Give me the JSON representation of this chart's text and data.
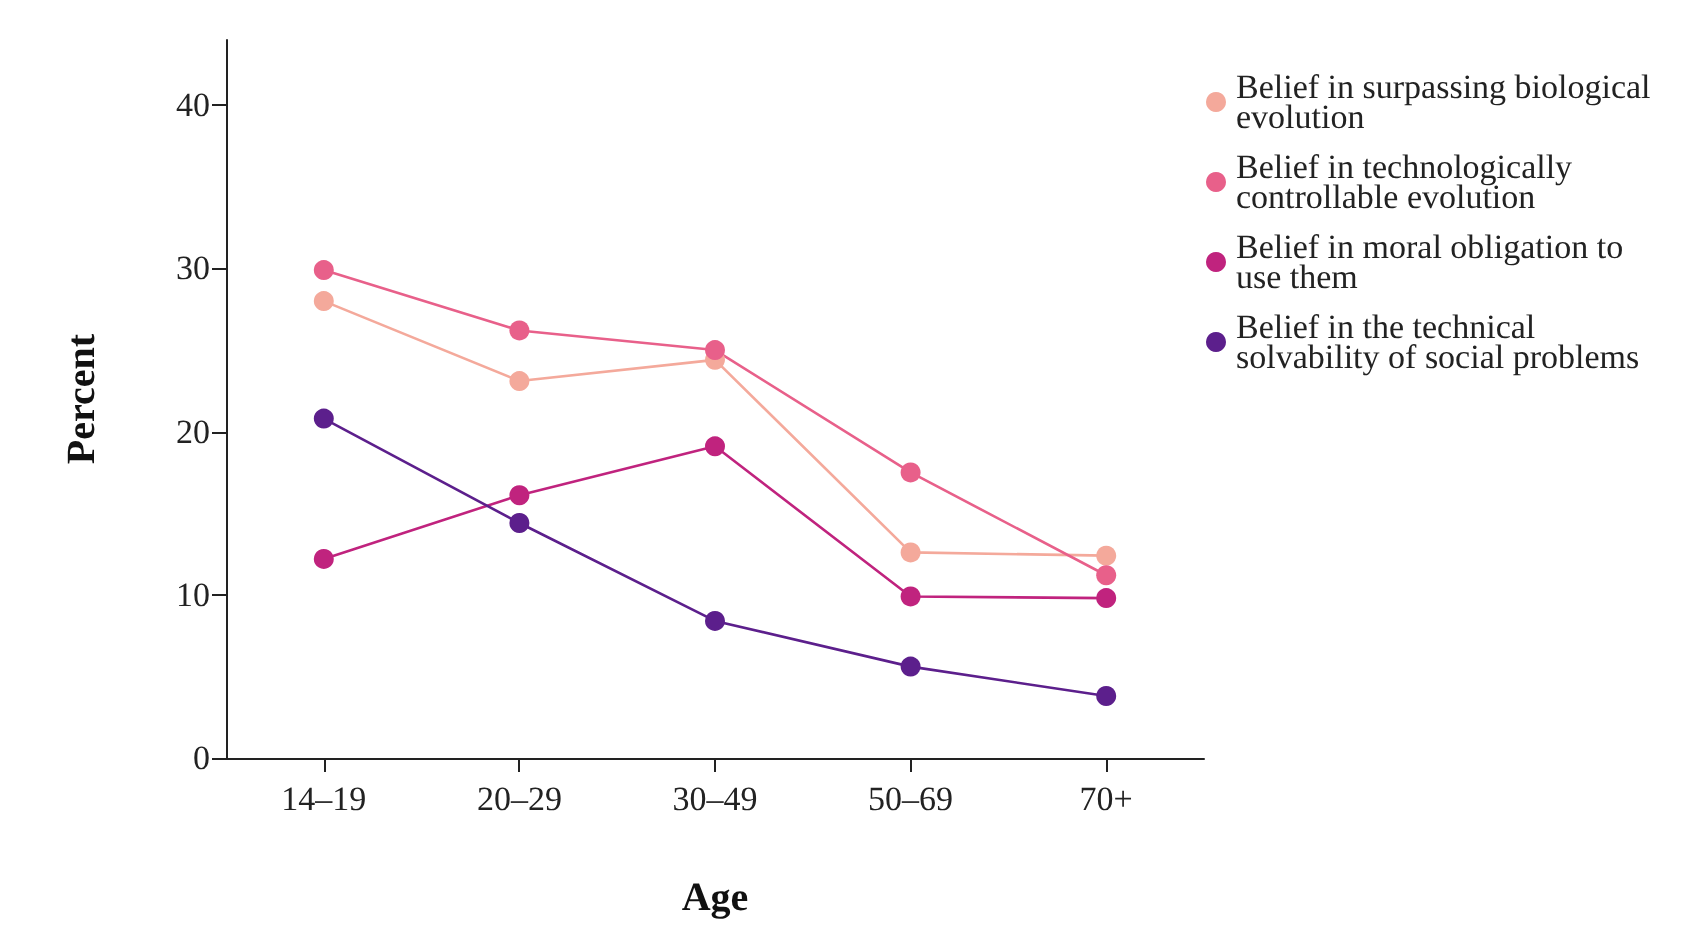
{
  "chart_data": {
    "type": "line",
    "xlabel": "Age",
    "ylabel": "Percent",
    "categories": [
      "14–19",
      "20–29",
      "30–49",
      "50–69",
      "70+"
    ],
    "series": [
      {
        "name": "Belief in surpassing biological evolution",
        "color": "#f4a99b",
        "values": [
          28,
          23.1,
          24.4,
          12.6,
          12.4
        ]
      },
      {
        "name": "Belief in technologically controllable evolution",
        "color": "#e8608a",
        "values": [
          29.9,
          26.2,
          25,
          17.5,
          11.2
        ]
      },
      {
        "name": "Belief in moral obligation to use them",
        "color": "#c0237e",
        "values": [
          12.2,
          16.1,
          19.1,
          9.9,
          9.8
        ]
      },
      {
        "name": "Belief in the technical solvability of social problems",
        "color": "#5c1f8c",
        "values": [
          20.8,
          14.4,
          8.4,
          5.6,
          3.8
        ]
      }
    ],
    "ylim": [
      0,
      44
    ],
    "yticks": [
      0,
      10,
      20,
      30,
      40
    ],
    "grid": false,
    "legend": "right",
    "marker": "circle",
    "line_style": "solid"
  }
}
